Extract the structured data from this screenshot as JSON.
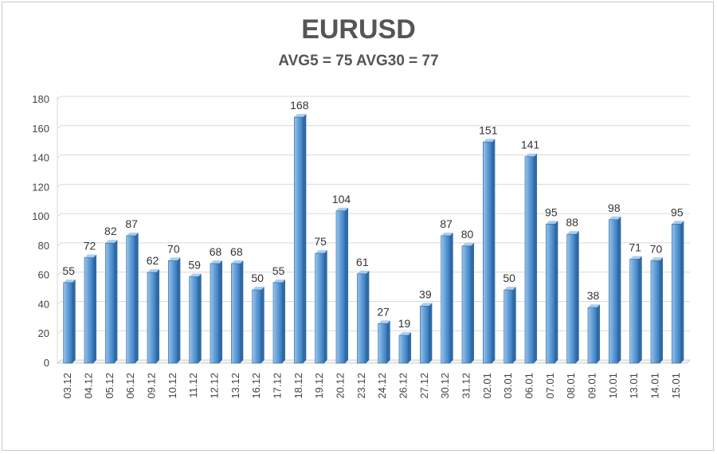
{
  "chart_data": {
    "type": "bar",
    "title": "EURUSD",
    "subtitle": "AVG5 = 75 AVG30 = 77",
    "xlabel": "",
    "ylabel": "",
    "ylim": [
      0,
      180
    ],
    "yticks": [
      0,
      20,
      40,
      60,
      80,
      100,
      120,
      140,
      160,
      180
    ],
    "grid": true,
    "legend": "none",
    "bar_color": "#5b9bd5",
    "categories": [
      "03.12",
      "04.12",
      "05.12",
      "06.12",
      "09.12",
      "10.12",
      "11.12",
      "12.12",
      "13.12",
      "16.12",
      "17.12",
      "18.12",
      "19.12",
      "20.12",
      "23.12",
      "24.12",
      "26.12",
      "27.12",
      "30.12",
      "31.12",
      "02.01",
      "03.01",
      "06.01",
      "07.01",
      "08.01",
      "09.01",
      "10.01",
      "13.01",
      "14.01",
      "15.01"
    ],
    "values": [
      55,
      72,
      82,
      87,
      62,
      70,
      59,
      68,
      68,
      50,
      55,
      168,
      75,
      104,
      61,
      27,
      19,
      39,
      87,
      80,
      151,
      50,
      141,
      95,
      88,
      38,
      98,
      71,
      70,
      95
    ]
  }
}
